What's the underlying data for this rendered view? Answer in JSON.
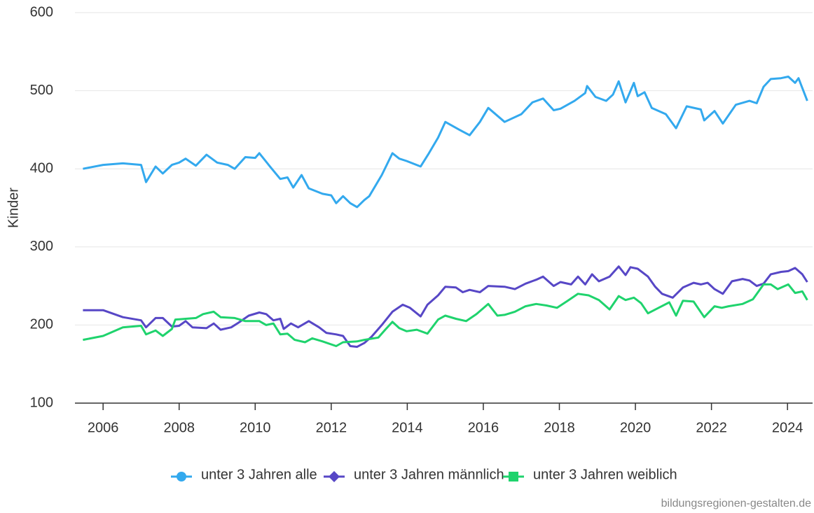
{
  "chart_data": {
    "type": "line",
    "y_label": "Kinder",
    "source": "bildungsregionen-gestalten.de",
    "xlim": [
      2005.26,
      2024.66
    ],
    "xticks": [
      2006,
      2008,
      2010,
      2012,
      2014,
      2016,
      2018,
      2020,
      2022,
      2024
    ],
    "ylim": [
      100,
      600
    ],
    "yticks": [
      100,
      200,
      300,
      400,
      500,
      600
    ],
    "grid": true,
    "legend": "bottom",
    "series": [
      {
        "name": "unter 3 Jahren alle",
        "color": "#33a9ee",
        "marker": "circle",
        "x": [
          2005.47,
          2006.0,
          2006.52,
          2007.0,
          2007.13,
          2007.38,
          2007.57,
          2007.81,
          2008.0,
          2008.17,
          2008.44,
          2008.72,
          2009.0,
          2009.28,
          2009.46,
          2009.74,
          2010.0,
          2010.11,
          2010.39,
          2010.66,
          2010.85,
          2011.0,
          2011.22,
          2011.41,
          2011.77,
          2012.0,
          2012.13,
          2012.31,
          2012.5,
          2012.68,
          2012.87,
          2013.0,
          2013.33,
          2013.61,
          2013.79,
          2013.98,
          2014.35,
          2014.57,
          2014.81,
          2015.0,
          2015.37,
          2015.64,
          2015.91,
          2016.13,
          2016.56,
          2017.0,
          2017.29,
          2017.57,
          2017.85,
          2018.03,
          2018.4,
          2018.68,
          2018.73,
          2018.95,
          2019.23,
          2019.41,
          2019.56,
          2019.74,
          2019.96,
          2020.06,
          2020.24,
          2020.43,
          2020.8,
          2021.07,
          2021.35,
          2021.72,
          2021.81,
          2022.08,
          2022.3,
          2022.64,
          2023.0,
          2023.19,
          2023.37,
          2023.56,
          2023.83,
          2024.02,
          2024.2,
          2024.29,
          2024.52
        ],
        "values": [
          400,
          405,
          407,
          405,
          383,
          403,
          394,
          405,
          408,
          413,
          404,
          418,
          408,
          405,
          400,
          415,
          414,
          420,
          403,
          387,
          389,
          376,
          392,
          375,
          368,
          366,
          356,
          365,
          356,
          351,
          360,
          365,
          392,
          420,
          413,
          410,
          403,
          420,
          440,
          460,
          450,
          443,
          460,
          478,
          460,
          470,
          485,
          490,
          475,
          477,
          487,
          497,
          506,
          492,
          487,
          495,
          512,
          485,
          510,
          493,
          498,
          478,
          470,
          452,
          480,
          476,
          462,
          474,
          458,
          482,
          487,
          484,
          505,
          515,
          516,
          518,
          510,
          516,
          487
        ]
      },
      {
        "name": "unter 3 Jahren männlich",
        "color": "#5747c6",
        "marker": "diamond",
        "x": [
          2005.47,
          2006.0,
          2006.52,
          2007.0,
          2007.13,
          2007.38,
          2007.57,
          2007.81,
          2008.0,
          2008.17,
          2008.35,
          2008.72,
          2008.91,
          2009.09,
          2009.37,
          2009.56,
          2009.83,
          2010.11,
          2010.29,
          2010.48,
          2010.66,
          2010.75,
          2010.94,
          2011.13,
          2011.41,
          2011.68,
          2011.87,
          2012.13,
          2012.31,
          2012.5,
          2012.68,
          2012.87,
          2013.06,
          2013.33,
          2013.61,
          2013.88,
          2014.07,
          2014.35,
          2014.53,
          2014.81,
          2015.0,
          2015.28,
          2015.46,
          2015.64,
          2015.91,
          2016.13,
          2016.56,
          2016.83,
          2017.11,
          2017.39,
          2017.57,
          2017.85,
          2018.03,
          2018.31,
          2018.49,
          2018.68,
          2018.86,
          2019.04,
          2019.32,
          2019.56,
          2019.74,
          2019.87,
          2020.06,
          2020.33,
          2020.52,
          2020.7,
          2020.98,
          2021.25,
          2021.53,
          2021.72,
          2021.9,
          2022.08,
          2022.3,
          2022.54,
          2022.82,
          2023.0,
          2023.19,
          2023.37,
          2023.56,
          2023.83,
          2024.02,
          2024.2,
          2024.39,
          2024.52
        ],
        "values": [
          219,
          219,
          210,
          206,
          197,
          209,
          209,
          198,
          199,
          205,
          197,
          196,
          202,
          194,
          197,
          203,
          212,
          216,
          214,
          206,
          208,
          195,
          202,
          197,
          205,
          197,
          190,
          188,
          186,
          173,
          172,
          177,
          185,
          200,
          217,
          226,
          222,
          211,
          226,
          238,
          249,
          248,
          242,
          245,
          242,
          250,
          249,
          246,
          253,
          258,
          262,
          250,
          255,
          252,
          262,
          252,
          265,
          256,
          262,
          275,
          264,
          274,
          272,
          262,
          249,
          240,
          235,
          248,
          254,
          252,
          254,
          246,
          240,
          256,
          259,
          257,
          250,
          253,
          265,
          268,
          269,
          273,
          265,
          255
        ]
      },
      {
        "name": "unter 3 Jahren weiblich",
        "color": "#1fd36d",
        "marker": "square",
        "x": [
          2005.47,
          2006.0,
          2006.52,
          2007.0,
          2007.13,
          2007.38,
          2007.57,
          2007.81,
          2007.9,
          2008.17,
          2008.44,
          2008.63,
          2008.91,
          2009.09,
          2009.46,
          2009.74,
          2010.11,
          2010.29,
          2010.48,
          2010.66,
          2010.85,
          2011.04,
          2011.31,
          2011.5,
          2011.77,
          2012.13,
          2012.31,
          2012.68,
          2012.87,
          2013.24,
          2013.42,
          2013.61,
          2013.79,
          2013.98,
          2014.25,
          2014.53,
          2014.81,
          2015.0,
          2015.28,
          2015.55,
          2015.82,
          2016.13,
          2016.37,
          2016.56,
          2016.83,
          2017.11,
          2017.39,
          2017.66,
          2017.94,
          2018.22,
          2018.49,
          2018.77,
          2019.04,
          2019.32,
          2019.56,
          2019.74,
          2019.96,
          2020.15,
          2020.33,
          2020.61,
          2020.89,
          2021.07,
          2021.25,
          2021.53,
          2021.81,
          2022.08,
          2022.27,
          2022.45,
          2022.82,
          2023.09,
          2023.37,
          2023.56,
          2023.74,
          2024.02,
          2024.2,
          2024.39,
          2024.52
        ],
        "values": [
          181,
          186,
          197,
          199,
          188,
          193,
          186,
          195,
          207,
          208,
          209,
          214,
          217,
          210,
          209,
          205,
          205,
          200,
          202,
          188,
          189,
          181,
          178,
          183,
          179,
          173,
          178,
          179,
          181,
          184,
          194,
          204,
          196,
          192,
          194,
          189,
          207,
          212,
          208,
          205,
          214,
          227,
          212,
          213,
          217,
          224,
          227,
          225,
          222,
          231,
          240,
          238,
          232,
          220,
          237,
          232,
          235,
          228,
          215,
          222,
          229,
          212,
          231,
          230,
          210,
          224,
          222,
          224,
          227,
          233,
          252,
          252,
          246,
          252,
          241,
          243,
          232
        ]
      }
    ]
  }
}
